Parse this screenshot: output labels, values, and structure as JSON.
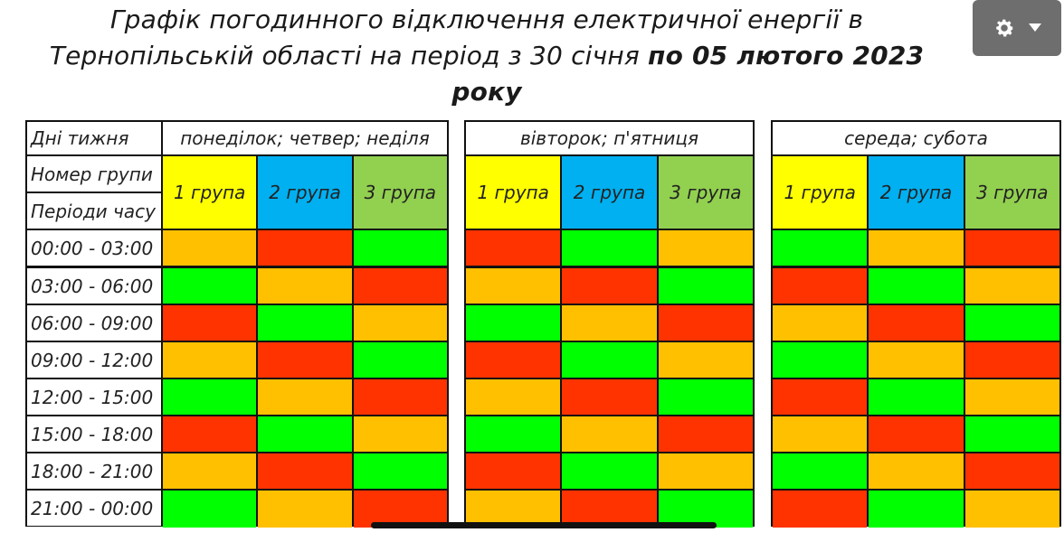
{
  "title": {
    "line1": "Графік погодинного відключення електричної енергії  в",
    "line2_regular": "Тернопільській області на період з 30 січня ",
    "line2_bold": "по 05 лютого 2023",
    "line3_bold": "року"
  },
  "toolbar": {
    "gear_icon": "gear-icon",
    "dropdown_icon": "caret-down-icon"
  },
  "table": {
    "days_label": "Дні тижня",
    "group_label": "Номер групи",
    "periods_label": "Періоди часу",
    "day_groups": [
      "понеділок; четвер; неділя",
      "вівторок; п'ятниця",
      "середа; субота"
    ],
    "group_names": [
      "1 група",
      "2 група",
      "3 група"
    ],
    "group_colors": [
      "#ffff00",
      "#00b0f0",
      "#92d050"
    ],
    "status_colors": {
      "R": "#ff3300",
      "O": "#ffc000",
      "G": "#00ff00"
    },
    "periods": [
      "00:00 - 03:00",
      "03:00 - 06:00",
      "06:00 - 09:00",
      "09:00 - 12:00",
      "12:00 - 15:00",
      "15:00 - 18:00",
      "18:00 - 21:00",
      "21:00 - 00:00"
    ],
    "schedule": [
      [
        [
          "O",
          "R",
          "G"
        ],
        [
          "R",
          "G",
          "O"
        ],
        [
          "G",
          "O",
          "R"
        ]
      ],
      [
        [
          "G",
          "O",
          "R"
        ],
        [
          "O",
          "R",
          "G"
        ],
        [
          "R",
          "G",
          "O"
        ]
      ],
      [
        [
          "R",
          "G",
          "O"
        ],
        [
          "G",
          "O",
          "R"
        ],
        [
          "O",
          "R",
          "G"
        ]
      ],
      [
        [
          "O",
          "R",
          "G"
        ],
        [
          "R",
          "G",
          "O"
        ],
        [
          "G",
          "O",
          "R"
        ]
      ],
      [
        [
          "G",
          "O",
          "R"
        ],
        [
          "O",
          "R",
          "G"
        ],
        [
          "R",
          "G",
          "O"
        ]
      ],
      [
        [
          "R",
          "G",
          "O"
        ],
        [
          "G",
          "O",
          "R"
        ],
        [
          "O",
          "R",
          "G"
        ]
      ],
      [
        [
          "O",
          "R",
          "G"
        ],
        [
          "R",
          "G",
          "O"
        ],
        [
          "G",
          "O",
          "R"
        ]
      ],
      [
        [
          "G",
          "O",
          "R"
        ],
        [
          "O",
          "R",
          "G"
        ],
        [
          "R",
          "G",
          "O"
        ]
      ]
    ]
  }
}
